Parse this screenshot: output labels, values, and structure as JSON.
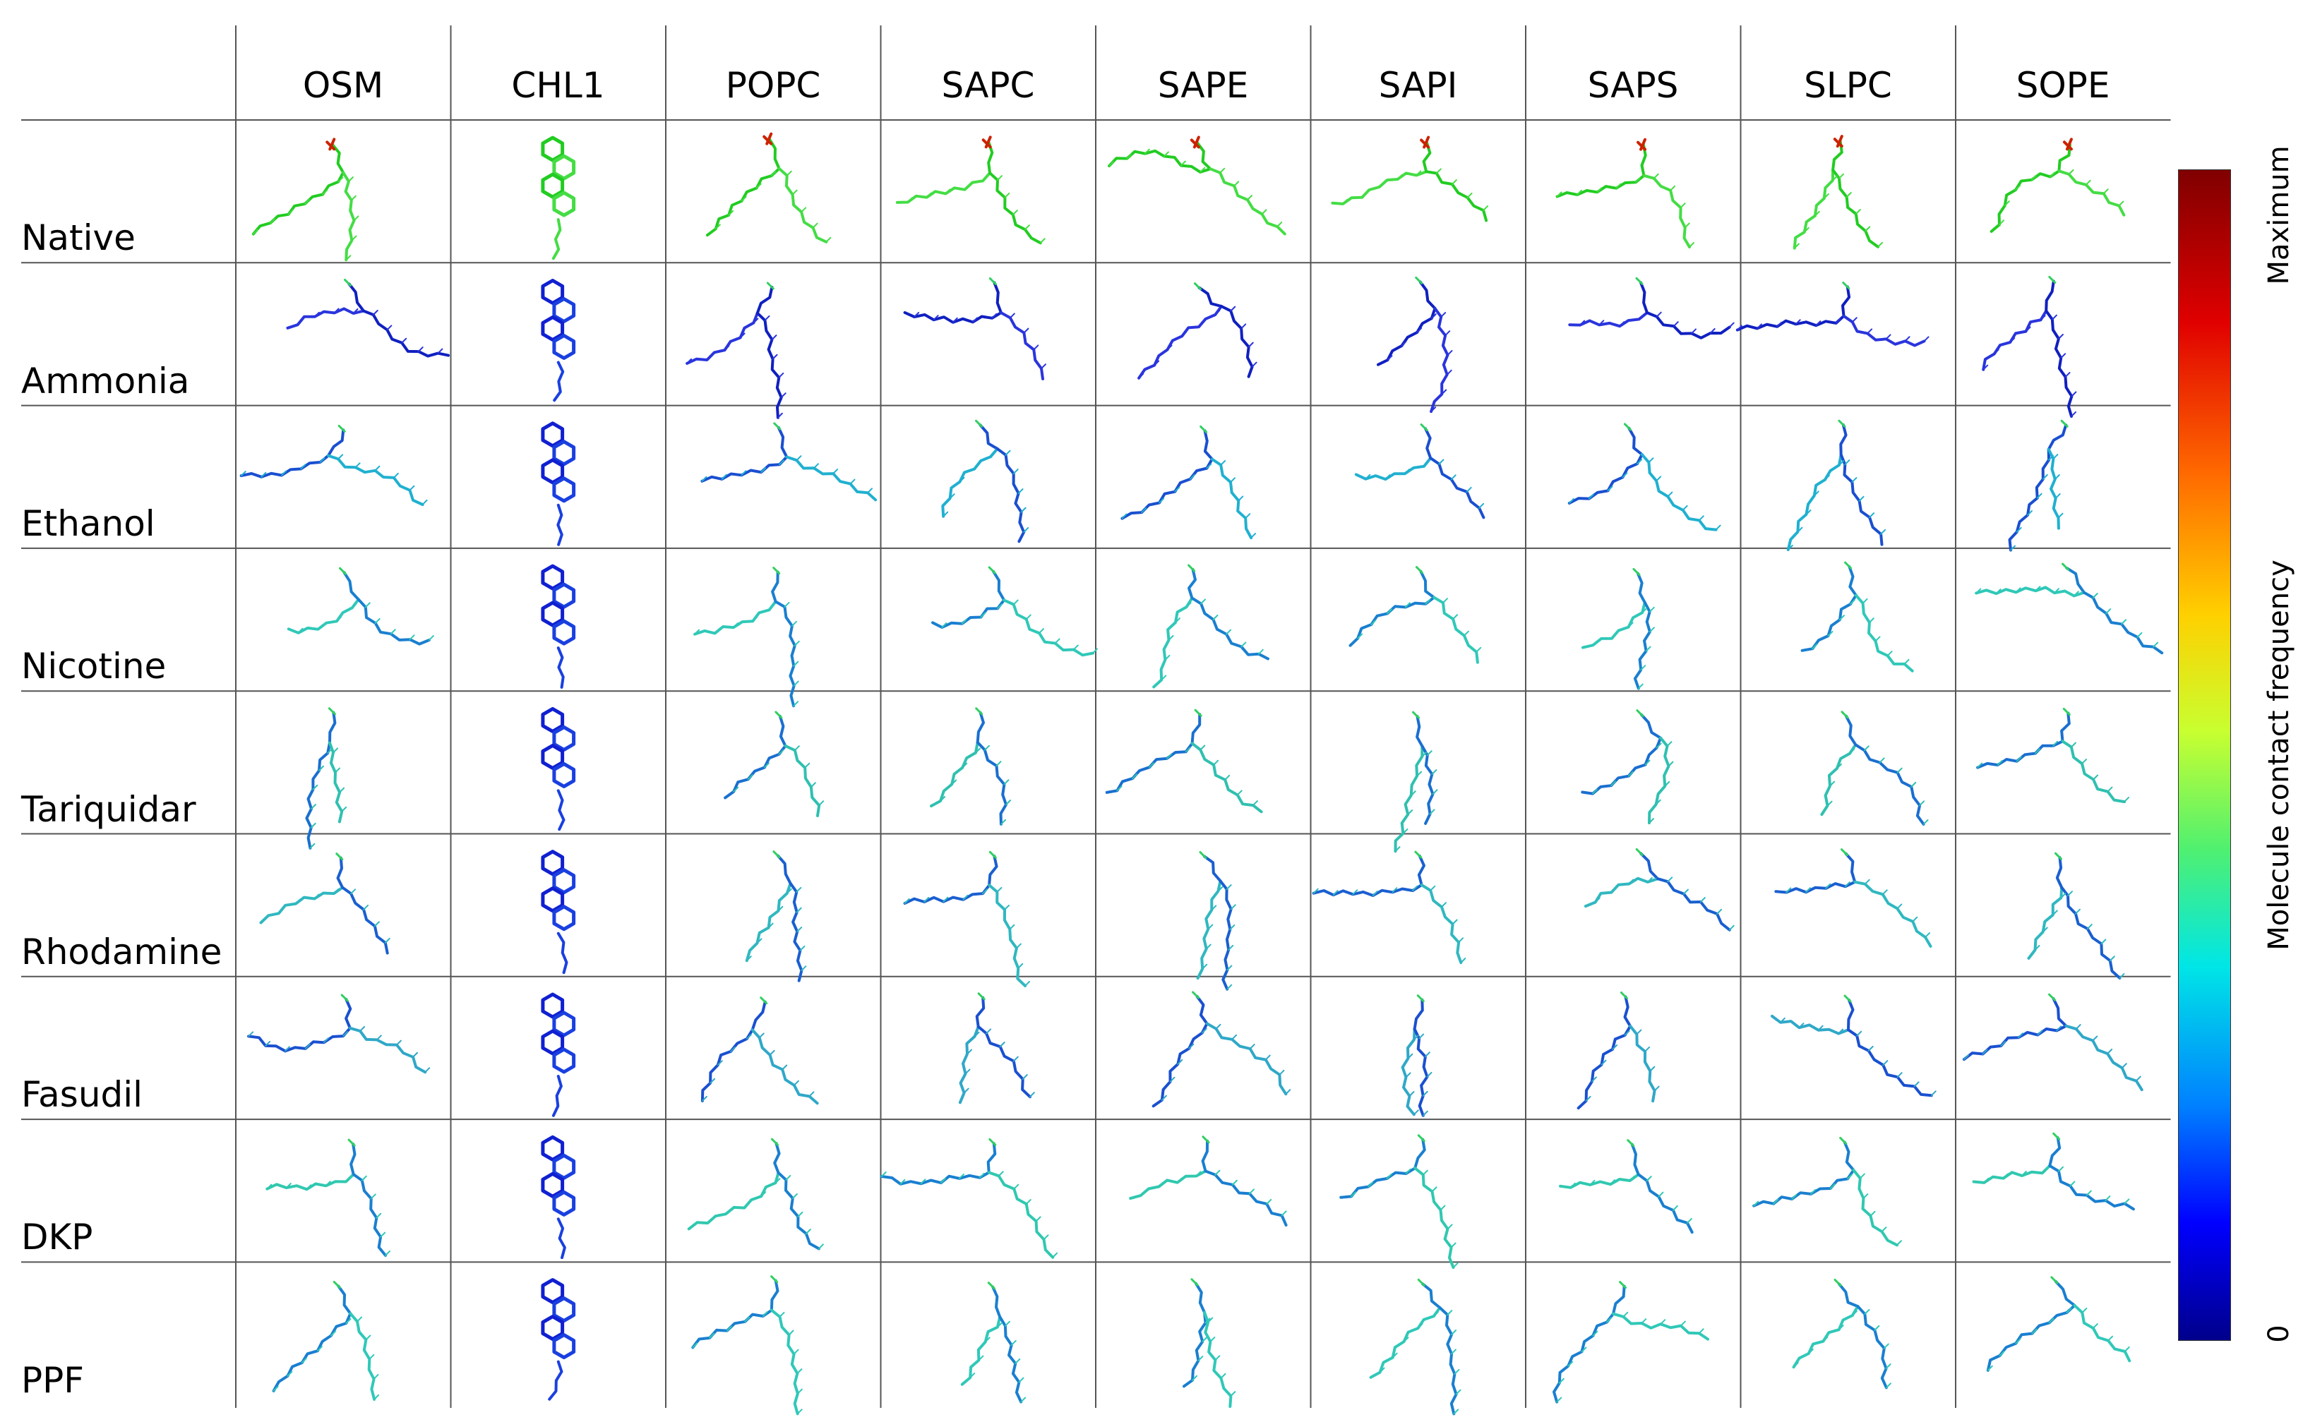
{
  "columns": [
    "OSM",
    "CHL1",
    "POPC",
    "SAPC",
    "SAPE",
    "SAPI",
    "SAPS",
    "SLPC",
    "SOPE"
  ],
  "rows": [
    "Native",
    "Ammonia",
    "Ethanol",
    "Nicotine",
    "Tariquidar",
    "Rhodamine",
    "Fasudil",
    "DKP",
    "PPF"
  ],
  "colorbar": {
    "title": "Molecule contact frequency",
    "max_label": "Maximum",
    "min_label": "0",
    "colors": [
      "#00008b",
      "#0000ff",
      "#0080ff",
      "#00e6e6",
      "#50f070",
      "#c8ff30",
      "#ffd000",
      "#ff6a00",
      "#e00000",
      "#800000"
    ]
  },
  "row_base_colors": {
    "Native": [
      "#22cc22",
      "#44dd44"
    ],
    "Ammonia": [
      "#1020c0",
      "#2a35dd"
    ],
    "Ethanol": [
      "#1a4fd0",
      "#20b0d0"
    ],
    "Nicotine": [
      "#1a7fd0",
      "#30c8b8"
    ],
    "Tariquidar": [
      "#1a6fd0",
      "#30c0b0"
    ],
    "Rhodamine": [
      "#1a5fd0",
      "#30b8c0"
    ],
    "Fasudil": [
      "#1a50d0",
      "#30a8c8"
    ],
    "DKP": [
      "#1a7fd0",
      "#30c8b0"
    ],
    "PPF": [
      "#1a7fd0",
      "#30c8b8"
    ]
  }
}
